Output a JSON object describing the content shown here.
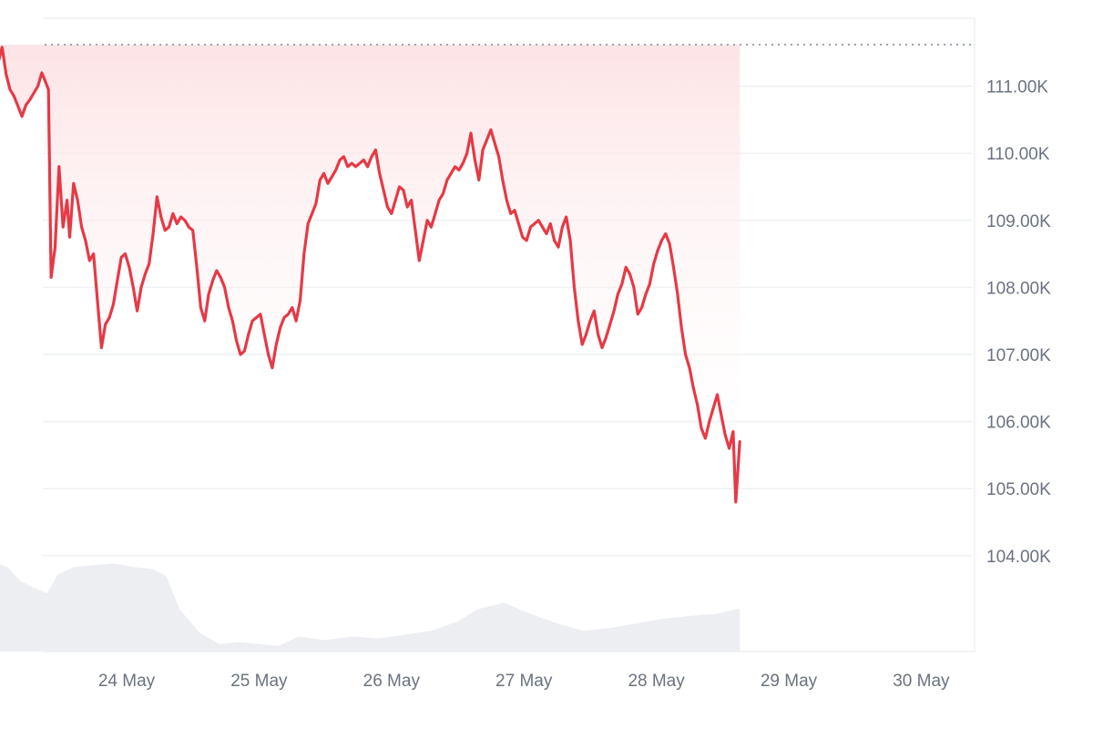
{
  "chart_data": {
    "type": "line",
    "title": "",
    "xlabel": "",
    "ylabel": "",
    "y_axis_position": "right",
    "ylim": [
      104000,
      112000
    ],
    "y_ticks": [
      {
        "value": 111000,
        "label": "111.00K"
      },
      {
        "value": 110000,
        "label": "110.00K"
      },
      {
        "value": 109000,
        "label": "109.00K"
      },
      {
        "value": 108000,
        "label": "108.00K"
      },
      {
        "value": 107000,
        "label": "107.00K"
      },
      {
        "value": 106000,
        "label": "106.00K"
      },
      {
        "value": 105000,
        "label": "105.00K"
      },
      {
        "value": 104000,
        "label": "104.00K"
      }
    ],
    "x_ticks": [
      {
        "day": 1,
        "label": "24 May"
      },
      {
        "day": 2,
        "label": "25 May"
      },
      {
        "day": 3,
        "label": "26 May"
      },
      {
        "day": 4,
        "label": "27 May"
      },
      {
        "day": 5,
        "label": "28 May"
      },
      {
        "day": 6,
        "label": "29 May"
      },
      {
        "day": 7,
        "label": "30 May"
      }
    ],
    "reference_line": {
      "value": 111620,
      "style": "dotted"
    },
    "grid": true,
    "legend": "none",
    "colors": {
      "line": "#e63946",
      "area_top": "#fde2e4",
      "volume": "#eceef1",
      "grid": "#eef0f3",
      "axis_text": "#6b7280",
      "reference": "#9ca3af"
    },
    "series": [
      {
        "values": [
          [
            0.0,
            111620
          ],
          [
            0.03,
            111350
          ],
          [
            0.06,
            111580
          ],
          [
            0.09,
            111180
          ],
          [
            0.12,
            110950
          ],
          [
            0.15,
            110850
          ],
          [
            0.18,
            110700
          ],
          [
            0.21,
            110550
          ],
          [
            0.24,
            110720
          ],
          [
            0.27,
            110800
          ],
          [
            0.3,
            110900
          ],
          [
            0.33,
            111000
          ],
          [
            0.36,
            111200
          ],
          [
            0.38,
            111100
          ],
          [
            0.41,
            110950
          ],
          [
            0.43,
            108150
          ],
          [
            0.46,
            108600
          ],
          [
            0.49,
            109800
          ],
          [
            0.52,
            108900
          ],
          [
            0.55,
            109300
          ],
          [
            0.57,
            108750
          ],
          [
            0.6,
            109550
          ],
          [
            0.63,
            109300
          ],
          [
            0.66,
            108900
          ],
          [
            0.69,
            108700
          ],
          [
            0.72,
            108400
          ],
          [
            0.75,
            108500
          ],
          [
            0.78,
            107800
          ],
          [
            0.81,
            107100
          ],
          [
            0.84,
            107450
          ],
          [
            0.87,
            107550
          ],
          [
            0.9,
            107750
          ],
          [
            0.93,
            108100
          ],
          [
            0.96,
            108450
          ],
          [
            0.99,
            108500
          ],
          [
            1.02,
            108300
          ],
          [
            1.05,
            108000
          ],
          [
            1.08,
            107650
          ],
          [
            1.11,
            108000
          ],
          [
            1.14,
            108200
          ],
          [
            1.17,
            108350
          ],
          [
            1.2,
            108800
          ],
          [
            1.23,
            109350
          ],
          [
            1.26,
            109050
          ],
          [
            1.29,
            108850
          ],
          [
            1.32,
            108900
          ],
          [
            1.35,
            109100
          ],
          [
            1.38,
            108950
          ],
          [
            1.41,
            109050
          ],
          [
            1.44,
            109000
          ],
          [
            1.47,
            108900
          ],
          [
            1.5,
            108850
          ],
          [
            1.53,
            108300
          ],
          [
            1.56,
            107700
          ],
          [
            1.59,
            107500
          ],
          [
            1.62,
            107900
          ],
          [
            1.65,
            108100
          ],
          [
            1.68,
            108250
          ],
          [
            1.71,
            108150
          ],
          [
            1.74,
            108000
          ],
          [
            1.77,
            107700
          ],
          [
            1.8,
            107500
          ],
          [
            1.83,
            107200
          ],
          [
            1.86,
            107000
          ],
          [
            1.89,
            107050
          ],
          [
            1.92,
            107300
          ],
          [
            1.95,
            107500
          ],
          [
            1.98,
            107550
          ],
          [
            2.01,
            107600
          ],
          [
            2.04,
            107300
          ],
          [
            2.07,
            107000
          ],
          [
            2.1,
            106800
          ],
          [
            2.13,
            107150
          ],
          [
            2.16,
            107400
          ],
          [
            2.19,
            107550
          ],
          [
            2.22,
            107600
          ],
          [
            2.25,
            107700
          ],
          [
            2.28,
            107500
          ],
          [
            2.31,
            107800
          ],
          [
            2.34,
            108500
          ],
          [
            2.37,
            108950
          ],
          [
            2.4,
            109100
          ],
          [
            2.43,
            109250
          ],
          [
            2.46,
            109600
          ],
          [
            2.49,
            109700
          ],
          [
            2.52,
            109550
          ],
          [
            2.55,
            109650
          ],
          [
            2.58,
            109750
          ],
          [
            2.61,
            109900
          ],
          [
            2.64,
            109950
          ],
          [
            2.67,
            109800
          ],
          [
            2.7,
            109850
          ],
          [
            2.73,
            109800
          ],
          [
            2.76,
            109850
          ],
          [
            2.79,
            109900
          ],
          [
            2.82,
            109800
          ],
          [
            2.85,
            109950
          ],
          [
            2.88,
            110050
          ],
          [
            2.91,
            109700
          ],
          [
            2.94,
            109450
          ],
          [
            2.97,
            109200
          ],
          [
            3.0,
            109100
          ],
          [
            3.03,
            109300
          ],
          [
            3.06,
            109500
          ],
          [
            3.09,
            109450
          ],
          [
            3.12,
            109200
          ],
          [
            3.15,
            109300
          ],
          [
            3.18,
            108850
          ],
          [
            3.21,
            108400
          ],
          [
            3.24,
            108700
          ],
          [
            3.27,
            109000
          ],
          [
            3.3,
            108900
          ],
          [
            3.33,
            109100
          ],
          [
            3.36,
            109300
          ],
          [
            3.39,
            109400
          ],
          [
            3.42,
            109600
          ],
          [
            3.45,
            109700
          ],
          [
            3.48,
            109800
          ],
          [
            3.51,
            109750
          ],
          [
            3.54,
            109850
          ],
          [
            3.57,
            110000
          ],
          [
            3.6,
            110300
          ],
          [
            3.63,
            109900
          ],
          [
            3.66,
            109600
          ],
          [
            3.69,
            110050
          ],
          [
            3.72,
            110200
          ],
          [
            3.75,
            110350
          ],
          [
            3.78,
            110150
          ],
          [
            3.81,
            109950
          ],
          [
            3.84,
            109600
          ],
          [
            3.87,
            109300
          ],
          [
            3.9,
            109100
          ],
          [
            3.93,
            109150
          ],
          [
            3.96,
            108950
          ],
          [
            3.99,
            108750
          ],
          [
            4.02,
            108700
          ],
          [
            4.05,
            108900
          ],
          [
            4.08,
            108950
          ],
          [
            4.11,
            109000
          ],
          [
            4.14,
            108900
          ],
          [
            4.17,
            108800
          ],
          [
            4.2,
            108950
          ],
          [
            4.23,
            108700
          ],
          [
            4.26,
            108600
          ],
          [
            4.29,
            108900
          ],
          [
            4.32,
            109050
          ],
          [
            4.35,
            108700
          ],
          [
            4.38,
            108000
          ],
          [
            4.41,
            107500
          ],
          [
            4.44,
            107150
          ],
          [
            4.47,
            107300
          ],
          [
            4.5,
            107500
          ],
          [
            4.53,
            107650
          ],
          [
            4.56,
            107300
          ],
          [
            4.59,
            107100
          ],
          [
            4.62,
            107250
          ],
          [
            4.65,
            107450
          ],
          [
            4.68,
            107650
          ],
          [
            4.71,
            107900
          ],
          [
            4.74,
            108050
          ],
          [
            4.77,
            108300
          ],
          [
            4.8,
            108200
          ],
          [
            4.83,
            108000
          ],
          [
            4.86,
            107600
          ],
          [
            4.89,
            107700
          ],
          [
            4.92,
            107900
          ],
          [
            4.95,
            108050
          ],
          [
            4.98,
            108350
          ],
          [
            5.01,
            108550
          ],
          [
            5.04,
            108700
          ],
          [
            5.07,
            108800
          ],
          [
            5.1,
            108650
          ],
          [
            5.13,
            108300
          ],
          [
            5.16,
            107900
          ],
          [
            5.19,
            107400
          ],
          [
            5.22,
            107000
          ],
          [
            5.25,
            106800
          ],
          [
            5.28,
            106500
          ],
          [
            5.31,
            106250
          ],
          [
            5.34,
            105900
          ],
          [
            5.37,
            105750
          ],
          [
            5.4,
            106000
          ],
          [
            5.43,
            106200
          ],
          [
            5.46,
            106400
          ],
          [
            5.49,
            106100
          ],
          [
            5.52,
            105800
          ],
          [
            5.55,
            105600
          ],
          [
            5.58,
            105850
          ],
          [
            5.6,
            104800
          ],
          [
            5.63,
            105700
          ]
        ]
      }
    ],
    "volume": [
      [
        0.0,
        0.95
      ],
      [
        0.1,
        0.9
      ],
      [
        0.2,
        0.75
      ],
      [
        0.3,
        0.68
      ],
      [
        0.4,
        0.62
      ],
      [
        0.48,
        0.82
      ],
      [
        0.6,
        0.9
      ],
      [
        0.75,
        0.92
      ],
      [
        0.9,
        0.94
      ],
      [
        1.05,
        0.9
      ],
      [
        1.2,
        0.88
      ],
      [
        1.3,
        0.8
      ],
      [
        1.4,
        0.45
      ],
      [
        1.55,
        0.2
      ],
      [
        1.7,
        0.08
      ],
      [
        1.85,
        0.1
      ],
      [
        2.0,
        0.08
      ],
      [
        2.15,
        0.06
      ],
      [
        2.3,
        0.16
      ],
      [
        2.5,
        0.12
      ],
      [
        2.7,
        0.16
      ],
      [
        2.9,
        0.14
      ],
      [
        3.1,
        0.18
      ],
      [
        3.3,
        0.22
      ],
      [
        3.5,
        0.32
      ],
      [
        3.65,
        0.45
      ],
      [
        3.85,
        0.52
      ],
      [
        4.05,
        0.4
      ],
      [
        4.25,
        0.3
      ],
      [
        4.45,
        0.22
      ],
      [
        4.65,
        0.25
      ],
      [
        4.85,
        0.3
      ],
      [
        5.05,
        0.35
      ],
      [
        5.25,
        0.38
      ],
      [
        5.45,
        0.4
      ],
      [
        5.63,
        0.46
      ]
    ],
    "volume_max_value": 1.0
  }
}
